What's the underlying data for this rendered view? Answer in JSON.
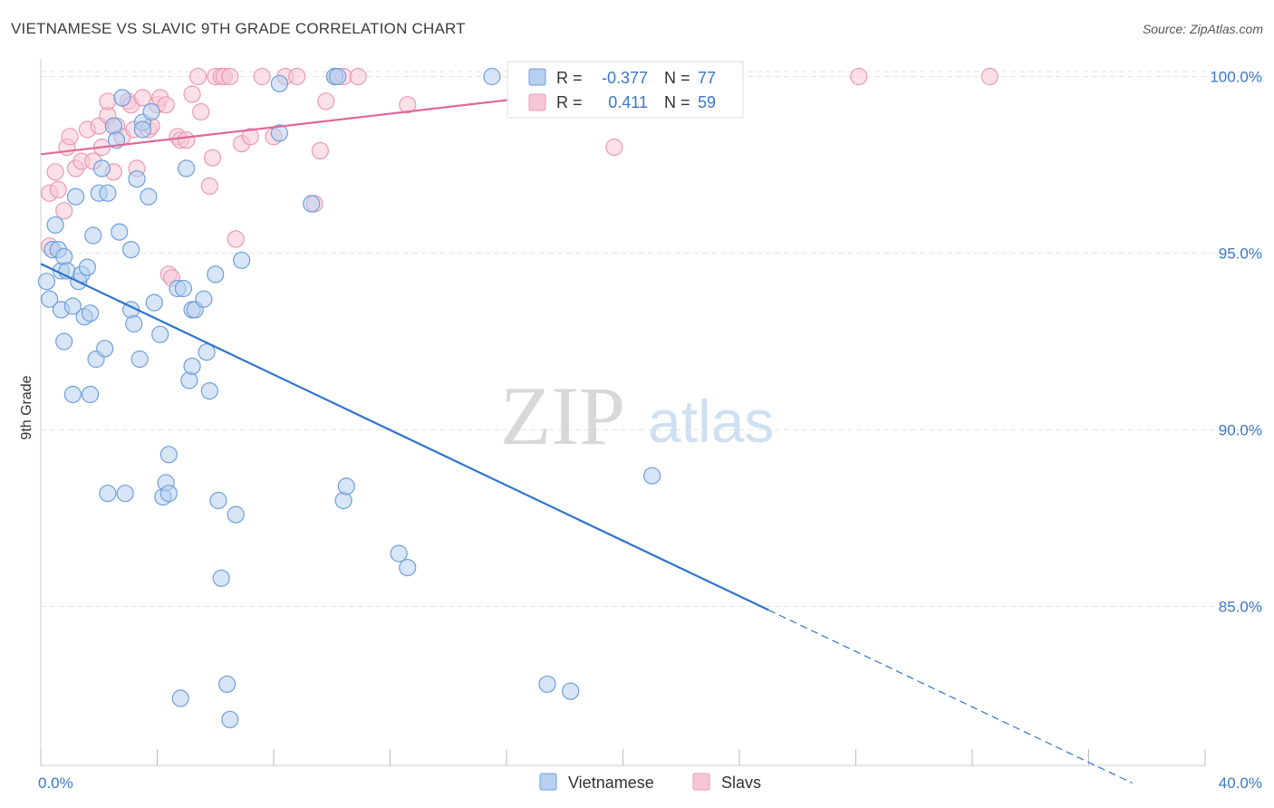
{
  "header": {
    "title": "VIETNAMESE VS SLAVIC 9TH GRADE CORRELATION CHART",
    "source": "Source: ZipAtlas.com"
  },
  "watermark": {
    "zip": "ZIP",
    "atlas": "atlas"
  },
  "colors": {
    "blue_fill": "#b7d0f0",
    "blue_stroke": "#6f9fd8",
    "blue_line": "#2f74cf",
    "pink_fill": "#f7c6d6",
    "pink_stroke": "#e99ab4",
    "pink_line": "#e0689a",
    "tick_text": "#3a78c8",
    "grid": "#e6e6e6"
  },
  "legend": {
    "rows": [
      {
        "r_label": "R =",
        "r_value": "-0.377",
        "n_label": "N =",
        "n_value": "77"
      },
      {
        "r_label": "R =",
        "r_value": "0.411",
        "n_label": "N =",
        "n_value": "59"
      }
    ]
  },
  "chart_data": {
    "type": "scatter",
    "title": "VIETNAMESE VS SLAVIC 9TH GRADE CORRELATION CHART",
    "xlabel": "",
    "ylabel": "9th Grade",
    "xlim": [
      0,
      40
    ],
    "ylim": [
      80.5,
      100.5
    ],
    "x_tick_labels": [
      "0.0%",
      "40.0%"
    ],
    "y_ticks": [
      85,
      90,
      95,
      100
    ],
    "y_tick_labels": [
      "85.0%",
      "90.0%",
      "95.0%",
      "100.0%"
    ],
    "legend_position": "bottom-center",
    "series": [
      {
        "name": "Vietnamese",
        "r": -0.377,
        "n": 77,
        "trend": {
          "x0": 0,
          "y0": 94.7,
          "x1": 25.0,
          "y1": 84.9,
          "dash_to_x": 37.5,
          "dash_to_y": 80.0
        },
        "points": [
          [
            0.2,
            94.2
          ],
          [
            0.3,
            93.7
          ],
          [
            0.4,
            95.1
          ],
          [
            0.5,
            95.8
          ],
          [
            0.6,
            95.1
          ],
          [
            0.7,
            94.5
          ],
          [
            0.7,
            93.4
          ],
          [
            0.8,
            94.9
          ],
          [
            0.8,
            92.5
          ],
          [
            0.9,
            94.5
          ],
          [
            1.1,
            91.0
          ],
          [
            1.1,
            93.5
          ],
          [
            1.2,
            96.6
          ],
          [
            1.3,
            94.2
          ],
          [
            1.4,
            94.4
          ],
          [
            1.5,
            93.2
          ],
          [
            1.6,
            94.6
          ],
          [
            1.7,
            93.3
          ],
          [
            1.7,
            91.0
          ],
          [
            1.8,
            95.5
          ],
          [
            1.9,
            92.0
          ],
          [
            2.0,
            96.7
          ],
          [
            2.1,
            97.4
          ],
          [
            2.2,
            92.3
          ],
          [
            2.3,
            96.7
          ],
          [
            2.3,
            88.2
          ],
          [
            2.5,
            98.6
          ],
          [
            2.6,
            98.2
          ],
          [
            2.7,
            95.6
          ],
          [
            2.8,
            99.4
          ],
          [
            2.9,
            88.2
          ],
          [
            3.1,
            93.4
          ],
          [
            3.1,
            95.1
          ],
          [
            3.2,
            93.0
          ],
          [
            3.3,
            97.1
          ],
          [
            3.4,
            92.0
          ],
          [
            3.5,
            98.7
          ],
          [
            3.5,
            98.5
          ],
          [
            3.7,
            96.6
          ],
          [
            3.8,
            99.0
          ],
          [
            3.9,
            93.6
          ],
          [
            4.1,
            92.7
          ],
          [
            4.2,
            88.1
          ],
          [
            4.3,
            88.5
          ],
          [
            4.4,
            89.3
          ],
          [
            4.4,
            88.2
          ],
          [
            4.7,
            94.0
          ],
          [
            4.8,
            82.4
          ],
          [
            4.9,
            94.0
          ],
          [
            5.0,
            97.4
          ],
          [
            5.1,
            91.4
          ],
          [
            5.2,
            91.8
          ],
          [
            5.2,
            93.4
          ],
          [
            5.3,
            93.4
          ],
          [
            5.6,
            93.7
          ],
          [
            5.7,
            92.2
          ],
          [
            5.8,
            91.1
          ],
          [
            6.0,
            94.4
          ],
          [
            6.1,
            88.0
          ],
          [
            6.2,
            85.8
          ],
          [
            6.4,
            82.8
          ],
          [
            6.5,
            81.8
          ],
          [
            6.7,
            87.6
          ],
          [
            6.9,
            94.8
          ],
          [
            8.2,
            98.4
          ],
          [
            8.2,
            99.8
          ],
          [
            9.3,
            96.4
          ],
          [
            10.1,
            100.0
          ],
          [
            10.2,
            100.0
          ],
          [
            10.4,
            88.0
          ],
          [
            10.5,
            88.4
          ],
          [
            12.3,
            86.5
          ],
          [
            12.6,
            86.1
          ],
          [
            15.5,
            100.0
          ],
          [
            17.4,
            82.8
          ],
          [
            18.2,
            82.6
          ],
          [
            21.0,
            88.7
          ]
        ]
      },
      {
        "name": "Slavs",
        "r": 0.411,
        "n": 59,
        "trend": {
          "x0": 0,
          "y0": 97.8,
          "x1": 23.0,
          "y1": 100.0
        },
        "points": [
          [
            0.3,
            95.2
          ],
          [
            0.3,
            96.7
          ],
          [
            0.5,
            97.3
          ],
          [
            0.6,
            96.8
          ],
          [
            0.8,
            96.2
          ],
          [
            0.9,
            98.0
          ],
          [
            1.0,
            98.3
          ],
          [
            1.2,
            97.4
          ],
          [
            1.4,
            97.6
          ],
          [
            1.6,
            98.5
          ],
          [
            1.8,
            97.6
          ],
          [
            2.0,
            98.6
          ],
          [
            2.1,
            98.0
          ],
          [
            2.3,
            98.9
          ],
          [
            2.3,
            99.3
          ],
          [
            2.5,
            97.3
          ],
          [
            2.6,
            98.6
          ],
          [
            2.8,
            98.3
          ],
          [
            3.0,
            99.3
          ],
          [
            3.1,
            99.2
          ],
          [
            3.2,
            98.5
          ],
          [
            3.3,
            97.4
          ],
          [
            3.5,
            99.4
          ],
          [
            3.7,
            98.5
          ],
          [
            3.8,
            98.6
          ],
          [
            4.0,
            99.2
          ],
          [
            4.1,
            99.4
          ],
          [
            4.3,
            99.2
          ],
          [
            4.4,
            94.4
          ],
          [
            4.5,
            94.3
          ],
          [
            4.7,
            98.3
          ],
          [
            4.8,
            98.2
          ],
          [
            5.0,
            98.2
          ],
          [
            5.2,
            99.5
          ],
          [
            5.4,
            100.0
          ],
          [
            5.5,
            99.0
          ],
          [
            5.8,
            96.9
          ],
          [
            5.9,
            97.7
          ],
          [
            6.0,
            100.0
          ],
          [
            6.2,
            100.0
          ],
          [
            6.3,
            100.0
          ],
          [
            6.5,
            100.0
          ],
          [
            6.7,
            95.4
          ],
          [
            6.9,
            98.1
          ],
          [
            7.2,
            98.3
          ],
          [
            7.6,
            100.0
          ],
          [
            8.0,
            98.3
          ],
          [
            8.4,
            100.0
          ],
          [
            8.8,
            100.0
          ],
          [
            9.4,
            96.4
          ],
          [
            9.6,
            97.9
          ],
          [
            9.8,
            99.3
          ],
          [
            10.1,
            100.0
          ],
          [
            10.4,
            100.0
          ],
          [
            10.9,
            100.0
          ],
          [
            12.6,
            99.2
          ],
          [
            19.7,
            98.0
          ],
          [
            28.1,
            100.0
          ],
          [
            32.6,
            100.0
          ]
        ]
      }
    ]
  }
}
